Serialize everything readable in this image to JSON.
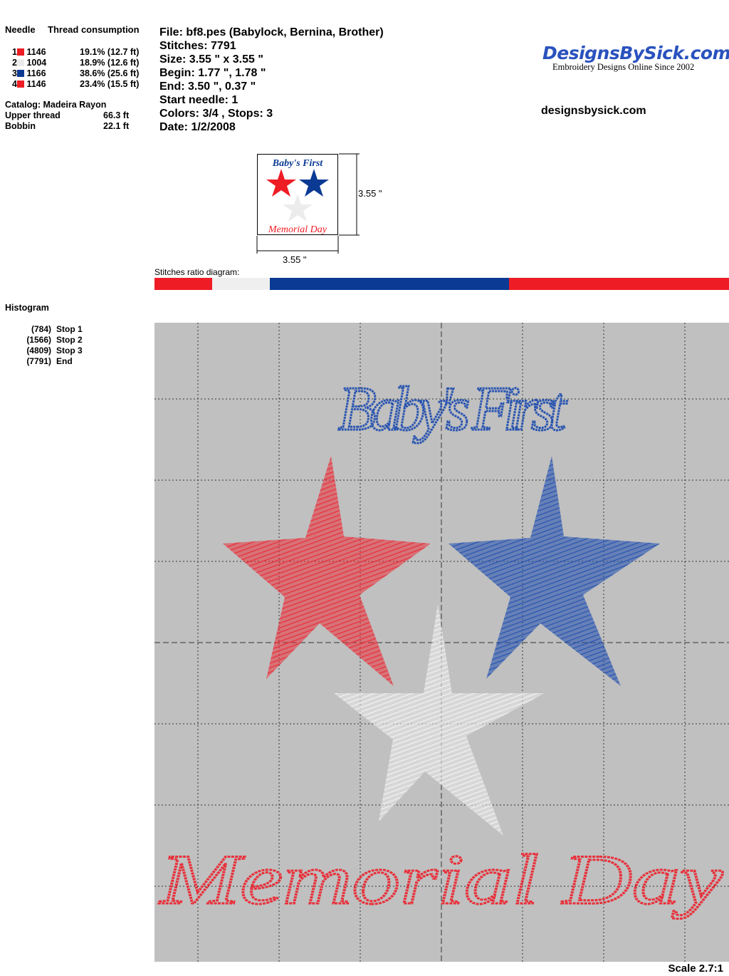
{
  "threads": {
    "header_needle": "Needle",
    "header_consumption": "Thread consumption",
    "rows": [
      {
        "needle": "1",
        "code": "1146",
        "color": "#ee1c25",
        "consumption": "19.1% (12.7 ft)"
      },
      {
        "needle": "2",
        "code": "1004",
        "color": "#ececec",
        "consumption": "18.9% (12.6 ft)"
      },
      {
        "needle": "3",
        "code": "1166",
        "color": "#0b3a94",
        "consumption": "38.6% (25.6 ft)"
      },
      {
        "needle": "4",
        "code": "1146",
        "color": "#ee1c25",
        "consumption": "23.4% (15.5 ft)"
      }
    ],
    "catalog": "Catalog: Madeira Rayon",
    "upper_label": "Upper thread",
    "upper_value": "66.3 ft",
    "bobbin_label": "Bobbin",
    "bobbin_value": "22.1 ft"
  },
  "info": {
    "file": "File: bf8.pes  (Babylock, Bernina, Brother)",
    "stitches": "Stitches: 7791",
    "size": "Size: 3.55 \" x 3.55 \"",
    "begin": "Begin: 1.77 \", 1.78 \"",
    "end": "End: 3.50 \", 0.37 \"",
    "start_needle": "Start needle: 1",
    "colors": "Colors: 3/4 , Stops: 3",
    "date": "Date: 1/2/2008"
  },
  "brand": {
    "logo": "DesignsBySick.com",
    "tagline": "Embroidery Designs Online Since 2002",
    "site": "designsbysick.com"
  },
  "thumbnail": {
    "height_label": "3.55 \"",
    "width_label": "3.55 \"",
    "line1": "Baby's First",
    "line2": "Memorial Day"
  },
  "ratio": {
    "label": "Stitches ratio diagram:"
  },
  "histogram": {
    "title": "Histogram",
    "stops": [
      {
        "count": "(784)",
        "label": "Stop 1",
        "stitches": 784,
        "color": "#ee1c25"
      },
      {
        "count": "(1566)",
        "label": "Stop 2",
        "stitches": 1566,
        "color": "#efefef"
      },
      {
        "count": "(4809)",
        "label": "Stop 3",
        "stitches": 4809,
        "color": "#0b3a94"
      },
      {
        "count": "(7791)",
        "label": "End",
        "stitches": 7791,
        "color": "#ee1c25"
      }
    ]
  },
  "design": {
    "line1": "Baby's First",
    "line2": "Memorial Day",
    "blue": "#2a55b0",
    "red": "#e8303a",
    "white": "#ececec"
  },
  "scale": "Scale 2.7:1"
}
